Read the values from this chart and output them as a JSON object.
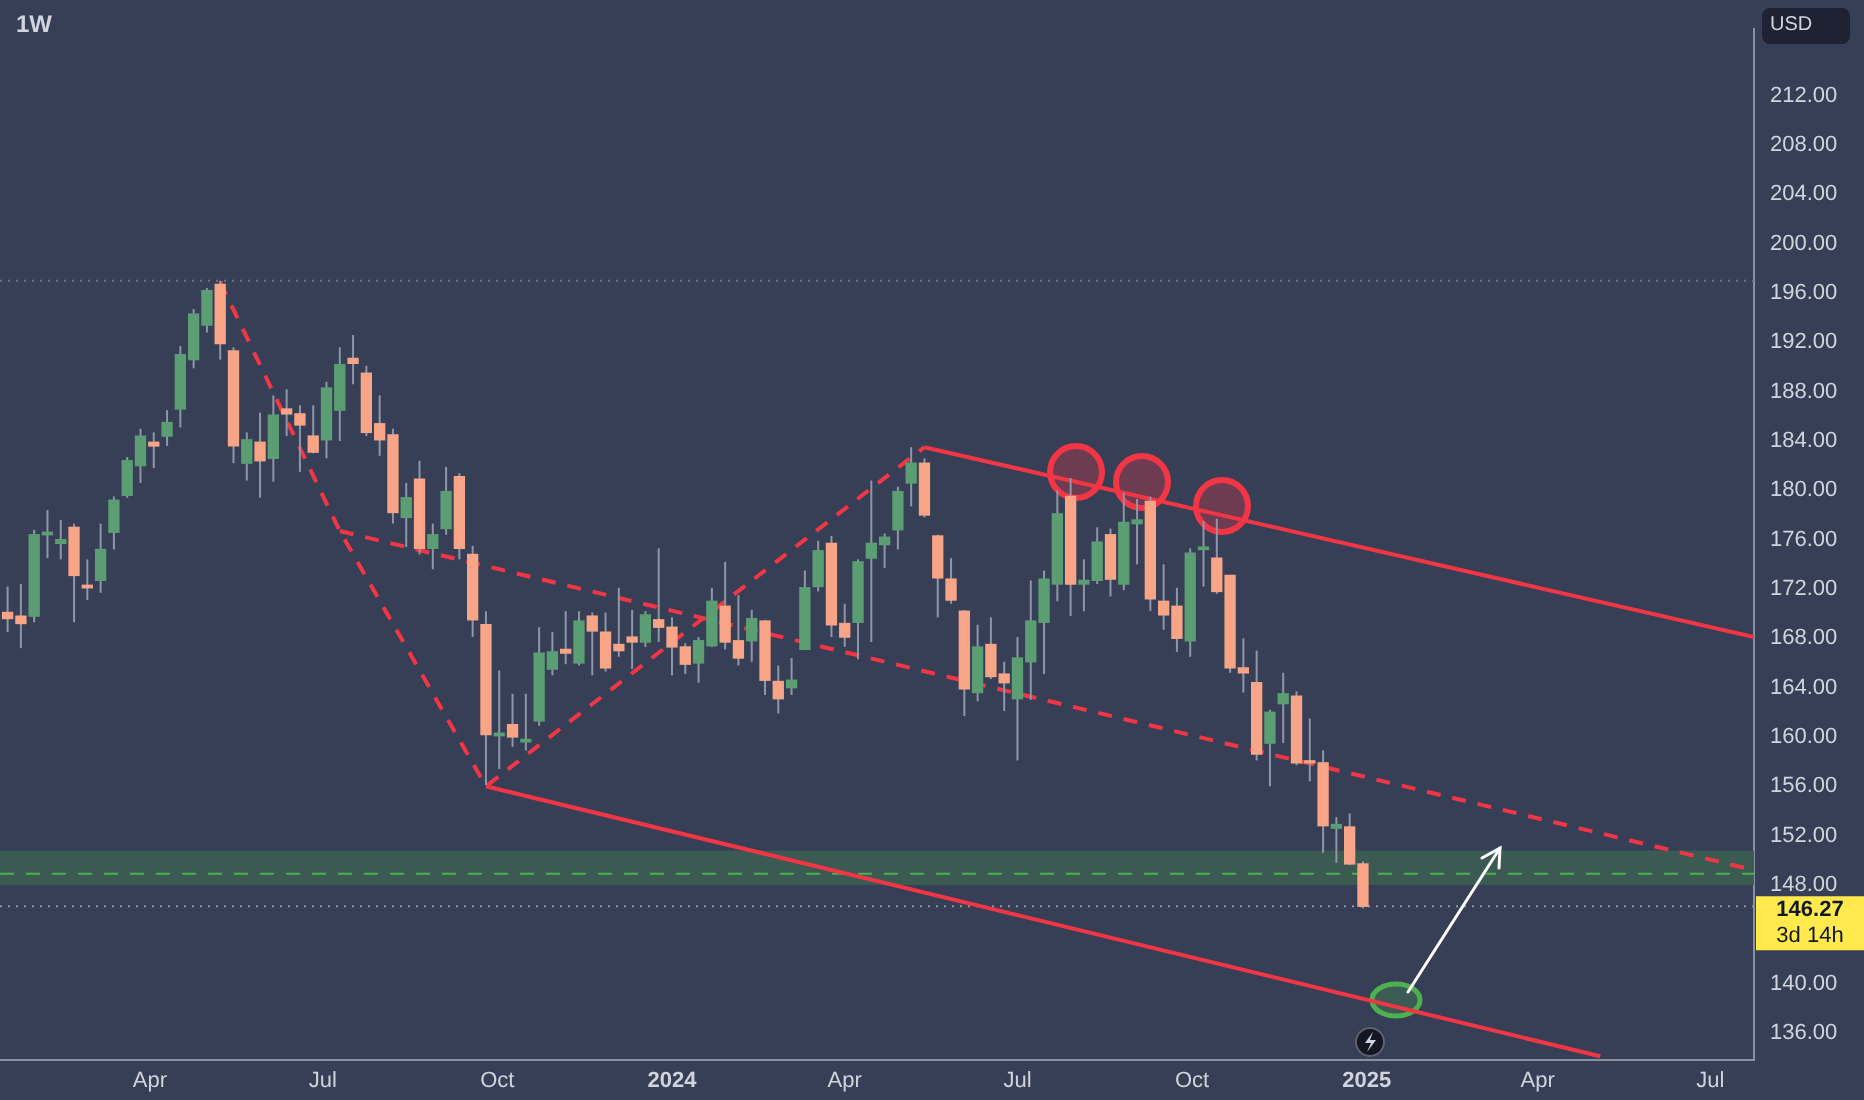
{
  "chart_data": {
    "type": "candlestick",
    "title": "1W",
    "ylabel": "USD",
    "x": [
      "2023-01-16",
      "2023-01-23",
      "2023-01-30",
      "2023-02-06",
      "2023-02-13",
      "2023-02-20",
      "2023-02-27",
      "2023-03-06",
      "2023-03-13",
      "2023-03-20",
      "2023-03-27",
      "2023-04-03",
      "2023-04-10",
      "2023-04-17",
      "2023-04-24",
      "2023-05-01",
      "2023-05-08",
      "2023-05-15",
      "2023-05-22",
      "2023-05-29",
      "2023-06-05",
      "2023-06-12",
      "2023-06-19",
      "2023-06-26",
      "2023-07-03",
      "2023-07-10",
      "2023-07-17",
      "2023-07-24",
      "2023-07-31",
      "2023-08-07",
      "2023-08-14",
      "2023-08-21",
      "2023-08-28",
      "2023-09-04",
      "2023-09-11",
      "2023-09-18",
      "2023-09-25",
      "2023-10-02",
      "2023-10-09",
      "2023-10-16",
      "2023-10-23",
      "2023-10-30",
      "2023-11-06",
      "2023-11-13",
      "2023-11-20",
      "2023-11-27",
      "2023-12-04",
      "2023-12-11",
      "2023-12-18",
      "2023-12-25",
      "2024-01-01",
      "2024-01-08",
      "2024-01-15",
      "2024-01-22",
      "2024-01-29",
      "2024-02-05",
      "2024-02-12",
      "2024-02-19",
      "2024-02-26",
      "2024-03-04",
      "2024-03-11",
      "2024-03-18",
      "2024-03-25",
      "2024-04-01",
      "2024-04-08",
      "2024-04-15",
      "2024-04-22",
      "2024-04-29",
      "2024-05-06",
      "2024-05-13",
      "2024-05-20",
      "2024-05-27",
      "2024-06-03",
      "2024-06-10",
      "2024-06-17",
      "2024-06-24",
      "2024-07-01",
      "2024-07-08",
      "2024-07-15",
      "2024-07-22",
      "2024-07-29",
      "2024-08-05",
      "2024-08-12",
      "2024-08-19",
      "2024-08-26",
      "2024-09-02",
      "2024-09-09",
      "2024-09-16",
      "2024-09-23",
      "2024-09-30",
      "2024-10-07",
      "2024-10-14",
      "2024-10-21",
      "2024-10-28",
      "2024-11-04",
      "2024-11-11",
      "2024-11-18",
      "2024-11-25",
      "2024-12-02",
      "2024-12-09",
      "2024-12-16",
      "2024-12-23",
      "2024-12-30"
    ],
    "ohlc": [
      [
        170.1,
        172.2,
        168.5,
        169.6
      ],
      [
        169.8,
        172.4,
        167.2,
        169.2
      ],
      [
        169.8,
        176.8,
        169.3,
        176.4
      ],
      [
        176.4,
        178.4,
        174.5,
        176.6
      ],
      [
        175.7,
        177.6,
        174.4,
        176.0
      ],
      [
        177.0,
        177.3,
        169.3,
        173.1
      ],
      [
        172.3,
        174.4,
        171.1,
        172.1
      ],
      [
        172.7,
        177.3,
        171.7,
        175.2
      ],
      [
        176.6,
        179.5,
        175.2,
        179.2
      ],
      [
        179.6,
        182.7,
        179.4,
        182.4
      ],
      [
        182.0,
        185.0,
        180.6,
        184.4
      ],
      [
        183.9,
        184.7,
        181.8,
        183.6
      ],
      [
        184.4,
        186.5,
        183.6,
        185.5
      ],
      [
        186.6,
        191.7,
        185.1,
        191.0
      ],
      [
        190.6,
        194.7,
        189.9,
        194.3
      ],
      [
        193.4,
        196.4,
        192.8,
        196.2
      ],
      [
        196.7,
        197.0,
        190.6,
        191.9
      ],
      [
        191.3,
        191.6,
        182.2,
        183.6
      ],
      [
        182.2,
        184.7,
        180.8,
        184.1
      ],
      [
        183.9,
        186.3,
        179.4,
        182.4
      ],
      [
        182.6,
        187.7,
        180.7,
        186.1
      ],
      [
        186.6,
        188.2,
        184.4,
        186.2
      ],
      [
        186.2,
        186.9,
        181.5,
        185.3
      ],
      [
        184.4,
        186.9,
        183.0,
        183.1
      ],
      [
        184.1,
        188.8,
        182.6,
        188.3
      ],
      [
        186.5,
        191.6,
        184.0,
        190.2
      ],
      [
        190.7,
        192.6,
        188.6,
        190.3
      ],
      [
        189.5,
        190.1,
        184.4,
        184.7
      ],
      [
        185.4,
        187.7,
        182.8,
        184.1
      ],
      [
        184.5,
        185.0,
        177.3,
        178.2
      ],
      [
        177.8,
        180.6,
        175.4,
        179.4
      ],
      [
        180.9,
        182.4,
        174.8,
        175.3
      ],
      [
        175.3,
        177.3,
        173.6,
        176.4
      ],
      [
        176.9,
        181.9,
        176.4,
        179.9
      ],
      [
        181.1,
        181.4,
        174.4,
        175.3
      ],
      [
        174.8,
        175.5,
        168.1,
        169.5
      ],
      [
        169.1,
        170.2,
        156.1,
        160.2
      ],
      [
        160.1,
        165.4,
        157.4,
        160.3
      ],
      [
        161.0,
        163.5,
        159.2,
        160.0
      ],
      [
        159.6,
        163.5,
        158.9,
        159.8
      ],
      [
        161.3,
        168.9,
        160.9,
        166.8
      ],
      [
        165.5,
        168.5,
        165.0,
        166.9
      ],
      [
        167.1,
        170.2,
        165.9,
        166.8
      ],
      [
        166.0,
        170.2,
        165.8,
        169.4
      ],
      [
        169.8,
        170.1,
        165.0,
        168.6
      ],
      [
        168.5,
        170.1,
        165.3,
        165.6
      ],
      [
        167.5,
        172.1,
        166.5,
        167.0
      ],
      [
        168.1,
        170.3,
        165.5,
        167.7
      ],
      [
        167.7,
        170.2,
        167.3,
        169.9
      ],
      [
        169.5,
        175.3,
        167.7,
        168.9
      ],
      [
        168.9,
        169.7,
        165.0,
        167.3
      ],
      [
        167.3,
        167.6,
        165.1,
        165.9
      ],
      [
        166.0,
        168.1,
        164.4,
        167.8
      ],
      [
        167.4,
        172.1,
        167.3,
        171.0
      ],
      [
        170.6,
        174.2,
        167.1,
        167.7
      ],
      [
        167.8,
        171.5,
        165.8,
        166.4
      ],
      [
        167.8,
        170.3,
        166.1,
        169.6
      ],
      [
        169.4,
        169.5,
        163.4,
        164.6
      ],
      [
        164.5,
        165.8,
        161.9,
        163.1
      ],
      [
        164.0,
        166.4,
        163.4,
        164.6
      ],
      [
        167.1,
        173.5,
        167.1,
        172.1
      ],
      [
        172.2,
        175.9,
        171.8,
        175.1
      ],
      [
        175.7,
        176.3,
        168.1,
        169.1
      ],
      [
        169.2,
        170.8,
        167.3,
        168.1
      ],
      [
        169.3,
        174.4,
        166.3,
        174.2
      ],
      [
        174.5,
        180.8,
        167.7,
        175.7
      ],
      [
        175.6,
        176.5,
        173.7,
        176.2
      ],
      [
        176.8,
        180.3,
        175.2,
        179.9
      ],
      [
        180.6,
        183.5,
        178.7,
        182.2
      ],
      [
        182.2,
        182.6,
        177.8,
        178.0
      ],
      [
        176.3,
        176.4,
        169.7,
        172.9
      ],
      [
        172.8,
        174.5,
        170.8,
        171.1
      ],
      [
        170.2,
        170.3,
        161.7,
        163.9
      ],
      [
        163.6,
        169.1,
        162.9,
        167.3
      ],
      [
        167.5,
        169.7,
        164.7,
        164.9
      ],
      [
        165.1,
        166.1,
        162.1,
        164.4
      ],
      [
        163.1,
        168.1,
        158.1,
        166.4
      ],
      [
        166.1,
        172.7,
        163.0,
        169.4
      ],
      [
        169.3,
        173.5,
        165.1,
        172.8
      ],
      [
        172.4,
        180.0,
        171.0,
        178.1
      ],
      [
        179.5,
        181.0,
        169.8,
        172.4
      ],
      [
        172.4,
        174.4,
        170.2,
        172.7
      ],
      [
        172.7,
        177.0,
        172.4,
        175.8
      ],
      [
        176.4,
        176.9,
        171.4,
        172.8
      ],
      [
        172.4,
        179.8,
        171.9,
        177.4
      ],
      [
        177.3,
        179.3,
        174.0,
        177.6
      ],
      [
        179.1,
        179.5,
        170.2,
        171.2
      ],
      [
        171.0,
        174.0,
        168.7,
        169.9
      ],
      [
        170.6,
        172.1,
        166.9,
        168.0
      ],
      [
        167.8,
        175.3,
        166.5,
        174.9
      ],
      [
        175.2,
        177.5,
        172.2,
        175.4
      ],
      [
        174.5,
        177.7,
        171.6,
        171.8
      ],
      [
        173.1,
        173.1,
        165.2,
        165.6
      ],
      [
        165.6,
        168.0,
        163.6,
        165.2
      ],
      [
        164.4,
        167.0,
        158.1,
        158.6
      ],
      [
        159.5,
        162.2,
        156.0,
        162.0
      ],
      [
        162.7,
        165.2,
        159.5,
        163.5
      ],
      [
        163.3,
        163.7,
        157.7,
        157.9
      ],
      [
        158.0,
        161.5,
        156.4,
        157.9
      ],
      [
        157.9,
        158.9,
        150.6,
        152.8
      ],
      [
        152.6,
        153.5,
        149.8,
        152.9
      ],
      [
        152.7,
        153.8,
        149.6,
        149.7
      ],
      [
        149.7,
        149.9,
        146.1,
        146.27
      ]
    ],
    "colors": [
      "#f7a586",
      "#f7a586",
      "#5b9e73",
      "#5b9e73",
      "#5b9e73",
      "#f7a586",
      "#f7a586",
      "#5b9e73",
      "#5b9e73",
      "#5b9e73",
      "#5b9e73",
      "#f7a586",
      "#5b9e73",
      "#5b9e73",
      "#5b9e73",
      "#5b9e73",
      "#f7a586",
      "#f7a586",
      "#5b9e73",
      "#f7a586",
      "#5b9e73",
      "#f7a586",
      "#f7a586",
      "#f7a586",
      "#5b9e73",
      "#5b9e73",
      "#f7a586",
      "#f7a586",
      "#f7a586",
      "#f7a586",
      "#5b9e73",
      "#f7a586",
      "#5b9e73",
      "#5b9e73",
      "#f7a586",
      "#f7a586",
      "#f7a586",
      "#5b9e73",
      "#f7a586",
      "#5b9e73",
      "#5b9e73",
      "#5b9e73",
      "#f7a586",
      "#5b9e73",
      "#f7a586",
      "#f7a586",
      "#f7a586",
      "#f7a586",
      "#5b9e73",
      "#f7a586",
      "#f7a586",
      "#f7a586",
      "#5b9e73",
      "#5b9e73",
      "#f7a586",
      "#f7a586",
      "#5b9e73",
      "#f7a586",
      "#f7a586",
      "#5b9e73",
      "#5b9e73",
      "#5b9e73",
      "#f7a586",
      "#f7a586",
      "#5b9e73",
      "#5b9e73",
      "#5b9e73",
      "#5b9e73",
      "#5b9e73",
      "#f7a586",
      "#f7a586",
      "#f7a586",
      "#f7a586",
      "#5b9e73",
      "#f7a586",
      "#f7a586",
      "#5b9e73",
      "#5b9e73",
      "#5b9e73",
      "#5b9e73",
      "#f7a586",
      "#5b9e73",
      "#5b9e73",
      "#f7a586",
      "#5b9e73",
      "#5b9e73",
      "#f7a586",
      "#f7a586",
      "#f7a586",
      "#5b9e73",
      "#5b9e73",
      "#f7a586",
      "#f7a586",
      "#f7a586",
      "#f7a586",
      "#5b9e73",
      "#5b9e73",
      "#f7a586",
      "#f7a586",
      "#f7a586",
      "#5b9e73",
      "#f7a586",
      "#f7a586"
    ],
    "series": [
      {
        "type": "line",
        "color": "#f23645",
        "line_style": "solid",
        "x": [
          "2024-05-13",
          "2025-07-24"
        ],
        "values": [
          183.5,
          168.1
        ]
      },
      {
        "type": "line",
        "color": "#f23645",
        "line_style": "solid",
        "x": [
          "2023-09-25",
          "2025-05-04"
        ],
        "values": [
          156.0,
          134.1
        ]
      },
      {
        "type": "line",
        "color": "#f23645",
        "line_style": "dashed",
        "x": [
          "2023-05-08",
          "2023-07-10",
          "2023-09-25",
          "2024-05-13"
        ],
        "values": [
          196.9,
          176.7,
          156.0,
          183.5
        ]
      },
      {
        "type": "line",
        "color": "#f23645",
        "line_style": "dashed",
        "x": [
          "2023-07-10",
          "2025-07-24"
        ],
        "values": [
          176.7,
          149.2
        ]
      }
    ],
    "xlim": [
      "2023-01-12",
      "2025-07-24"
    ],
    "xticks": [
      {
        "value": "2023-04-01",
        "label": "Apr"
      },
      {
        "value": "2023-07-01",
        "label": "Jul"
      },
      {
        "value": "2023-10-01",
        "label": "Oct"
      },
      {
        "value": "2024-01-01",
        "label": "2024"
      },
      {
        "value": "2024-04-01",
        "label": "Apr"
      },
      {
        "value": "2024-07-01",
        "label": "Jul"
      },
      {
        "value": "2024-10-01",
        "label": "Oct"
      },
      {
        "value": "2025-01-01",
        "label": "2025"
      },
      {
        "value": "2025-04-01",
        "label": "Apr"
      },
      {
        "value": "2025-07-01",
        "label": "Jul"
      }
    ],
    "ylim": [
      133.8,
      217.4
    ],
    "yticks": [
      {
        "value": 136,
        "label": "136.00"
      },
      {
        "value": 140,
        "label": "140.00"
      },
      {
        "value": 148,
        "label": "148.00"
      },
      {
        "value": 152,
        "label": "152.00"
      },
      {
        "value": 156,
        "label": "156.00"
      },
      {
        "value": 160,
        "label": "160.00"
      },
      {
        "value": 164,
        "label": "164.00"
      },
      {
        "value": 168,
        "label": "168.00"
      },
      {
        "value": 172,
        "label": "172.00"
      },
      {
        "value": 176,
        "label": "176.00"
      },
      {
        "value": 180,
        "label": "180.00"
      },
      {
        "value": 184,
        "label": "184.00"
      },
      {
        "value": 188,
        "label": "188.00"
      },
      {
        "value": 192,
        "label": "192.00"
      },
      {
        "value": 196,
        "label": "196.00"
      },
      {
        "value": 200,
        "label": "200.00"
      },
      {
        "value": 204,
        "label": "204.00"
      },
      {
        "value": 208,
        "label": "208.00"
      },
      {
        "value": 212,
        "label": "212.00"
      }
    ],
    "ref_lines": [
      {
        "axis": "y",
        "value": 197.0,
        "color": "#6b7386",
        "line_style": "dotted"
      },
      {
        "axis": "y",
        "value": 148.9,
        "color": "#4caf50",
        "line_style": "dashed"
      },
      {
        "axis": "y",
        "value": 146.27,
        "label": "146.27",
        "color": "#9598a1",
        "line_style": "dotted"
      }
    ],
    "bands": [
      {
        "axis": "y",
        "from": 148.0,
        "to": 150.8,
        "color": "#3a5a52"
      }
    ],
    "annotations": [
      "3d 14h"
    ],
    "legend": false,
    "grid": false
  }
}
